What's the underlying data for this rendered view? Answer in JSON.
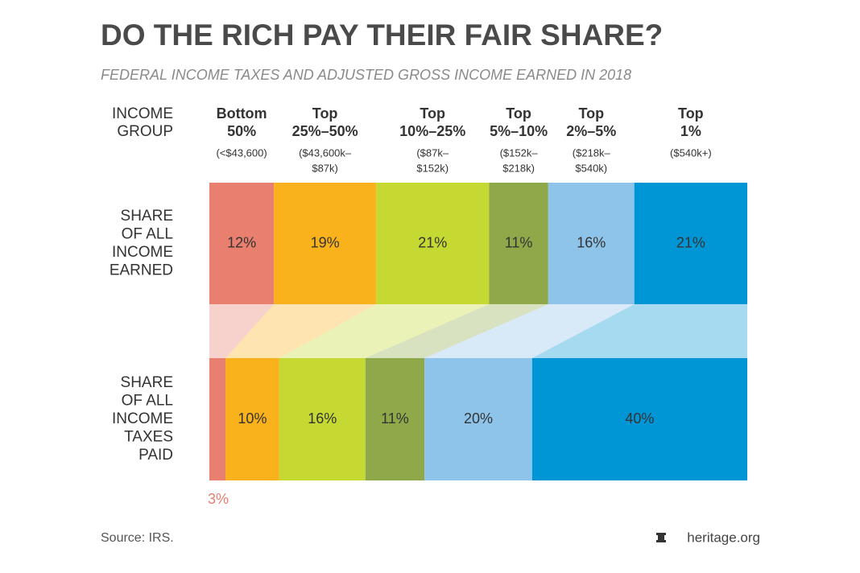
{
  "chart_data": {
    "type": "stacked-share",
    "title": "DO THE RICH PAY THEIR FAIR SHARE?",
    "subtitle": "FEDERAL INCOME TAXES AND ADJUSTED GROSS INCOME EARNED IN 2018",
    "category_header": [
      "INCOME",
      "GROUP"
    ],
    "categories": [
      {
        "name": [
          "Bottom",
          "50%"
        ],
        "range": [
          "(<$43,600)"
        ]
      },
      {
        "name": [
          "Top",
          "25%–50%"
        ],
        "range": [
          "($43,600k–",
          "$87k)"
        ]
      },
      {
        "name": [
          "Top",
          "10%–25%"
        ],
        "range": [
          "($87k–",
          "$152k)"
        ]
      },
      {
        "name": [
          "Top",
          "5%–10%"
        ],
        "range": [
          "($152k–",
          "$218k)"
        ]
      },
      {
        "name": [
          "Top",
          "2%–5%"
        ],
        "range": [
          "($218k–",
          "$540k)"
        ]
      },
      {
        "name": [
          "Top",
          "1%"
        ],
        "range": [
          "($540k+)"
        ]
      }
    ],
    "colors": [
      "#e97f6e",
      "#f9b21c",
      "#c5d932",
      "#8fa84a",
      "#8ec4ea",
      "#0096d6"
    ],
    "series": [
      {
        "name": [
          "SHARE",
          "OF ALL",
          "INCOME",
          "EARNED"
        ],
        "values": [
          12,
          19,
          21,
          11,
          16,
          21
        ],
        "value_labels": [
          "12%",
          "19%",
          "21%",
          "11%",
          "16%",
          "21%"
        ]
      },
      {
        "name": [
          "SHARE",
          "OF ALL",
          "INCOME",
          "TAXES",
          "PAID"
        ],
        "values": [
          3,
          10,
          16,
          11,
          20,
          40
        ],
        "value_labels": [
          "3%",
          "10%",
          "16%",
          "11%",
          "20%",
          "40%"
        ]
      }
    ],
    "source": "Source: IRS.",
    "credit": "heritage.org"
  }
}
